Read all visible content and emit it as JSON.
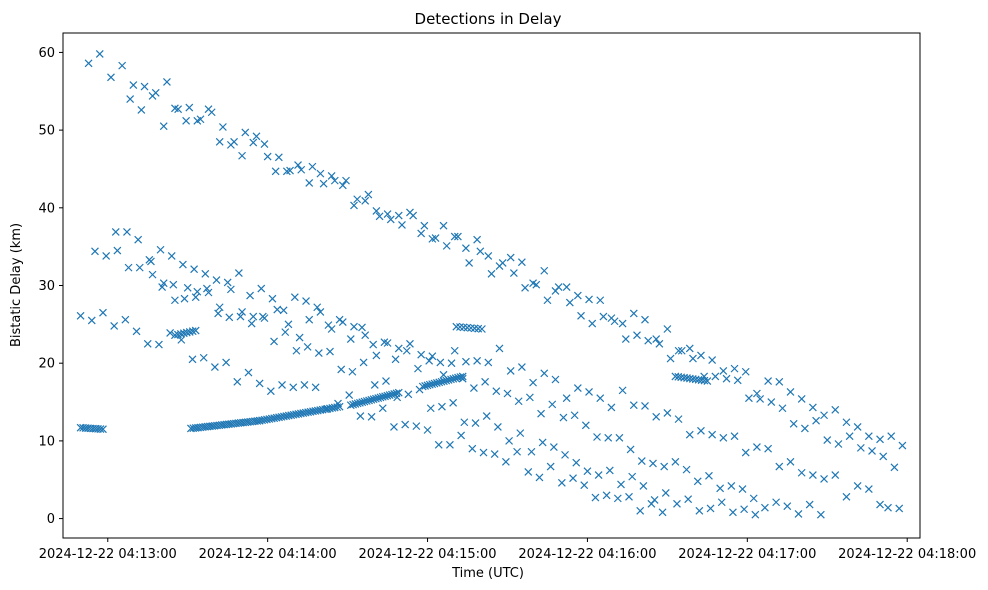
{
  "chart_data": {
    "type": "scatter",
    "title": "Detections in Delay",
    "xlabel": "Time (UTC)",
    "ylabel": "Bistatic Delay (km)",
    "marker": "x",
    "color": "#1f77b4",
    "grid": false,
    "x_units": "minutes after 2024-12-22 04:13:00",
    "xlim": [
      -0.28,
      5.08
    ],
    "ylim": [
      -2.5,
      62.5
    ],
    "xticks": [
      {
        "value": 0,
        "label": "2024-12-22 04:13:00"
      },
      {
        "value": 1,
        "label": "2024-12-22 04:14:00"
      },
      {
        "value": 2,
        "label": "2024-12-22 04:15:00"
      },
      {
        "value": 3,
        "label": "2024-12-22 04:16:00"
      },
      {
        "value": 4,
        "label": "2024-12-22 04:17:00"
      },
      {
        "value": 5,
        "label": "2024-12-22 04:18:00"
      }
    ],
    "yticks": [
      {
        "value": 0,
        "label": "0"
      },
      {
        "value": 10,
        "label": "10"
      },
      {
        "value": 20,
        "label": "20"
      },
      {
        "value": 30,
        "label": "30"
      },
      {
        "value": 40,
        "label": "40"
      },
      {
        "value": 50,
        "label": "50"
      },
      {
        "value": 60,
        "label": "60"
      }
    ],
    "tracks": [
      {
        "name": "track-1",
        "x_start": -0.17,
        "x_end": -0.03,
        "y_start": 11.7,
        "y_end": 11.5,
        "n": 10
      },
      {
        "name": "track-2",
        "x_start": 0.52,
        "x_end": 0.95,
        "y_start": 11.6,
        "y_end": 12.6,
        "n": 30
      },
      {
        "name": "track-3",
        "x_start": 0.95,
        "x_end": 1.45,
        "y_start": 12.6,
        "y_end": 14.4,
        "n": 34
      },
      {
        "name": "track-4",
        "x_start": 1.52,
        "x_end": 1.82,
        "y_start": 14.6,
        "y_end": 16.2,
        "n": 22
      },
      {
        "name": "track-5",
        "x_start": 1.97,
        "x_end": 2.22,
        "y_start": 17.0,
        "y_end": 18.3,
        "n": 18
      },
      {
        "name": "track-6",
        "x_start": 0.42,
        "x_end": 0.55,
        "y_start": 23.6,
        "y_end": 24.2,
        "n": 8
      },
      {
        "name": "track-7",
        "x_start": 2.18,
        "x_end": 2.34,
        "y_start": 24.7,
        "y_end": 24.4,
        "n": 8
      },
      {
        "name": "track-8",
        "x_start": 3.55,
        "x_end": 3.75,
        "y_start": 18.3,
        "y_end": 17.7,
        "n": 12
      }
    ],
    "points": [
      [
        0.28,
        31.4
      ],
      [
        0.35,
        30.3
      ],
      [
        0.42,
        28.1
      ],
      [
        0.5,
        29.7
      ],
      [
        0.56,
        29.2
      ],
      [
        0.63,
        29.1
      ],
      [
        0.7,
        27.2
      ],
      [
        0.77,
        29.5
      ],
      [
        0.84,
        26.6
      ],
      [
        0.91,
        26.0
      ],
      [
        0.98,
        25.8
      ],
      [
        1.06,
        26.9
      ],
      [
        1.13,
        25.0
      ],
      [
        1.2,
        23.3
      ],
      [
        1.26,
        25.6
      ],
      [
        1.33,
        26.6
      ],
      [
        1.4,
        24.4
      ],
      [
        1.47,
        25.3
      ],
      [
        1.54,
        24.7
      ],
      [
        1.61,
        23.6
      ],
      [
        1.68,
        21.0
      ],
      [
        1.75,
        22.6
      ],
      [
        1.82,
        21.9
      ],
      [
        1.89,
        22.5
      ],
      [
        1.96,
        21.1
      ],
      [
        2.03,
        20.9
      ],
      [
        2.1,
        18.5
      ],
      [
        2.17,
        21.6
      ],
      [
        2.24,
        20.2
      ],
      [
        2.31,
        20.3
      ],
      [
        2.38,
        20.1
      ],
      [
        2.45,
        21.9
      ],
      [
        2.52,
        19.0
      ],
      [
        2.59,
        19.5
      ],
      [
        2.66,
        17.5
      ],
      [
        2.73,
        18.7
      ],
      [
        2.8,
        17.9
      ],
      [
        2.87,
        15.5
      ],
      [
        2.94,
        16.8
      ],
      [
        3.01,
        16.3
      ],
      [
        3.08,
        15.5
      ],
      [
        3.15,
        14.3
      ],
      [
        3.22,
        16.5
      ],
      [
        3.29,
        14.6
      ],
      [
        3.36,
        14.5
      ],
      [
        3.43,
        13.1
      ],
      [
        3.5,
        13.6
      ],
      [
        3.57,
        12.8
      ],
      [
        3.64,
        10.8
      ],
      [
        3.71,
        11.3
      ],
      [
        3.78,
        10.8
      ],
      [
        3.85,
        10.4
      ],
      [
        3.92,
        10.6
      ],
      [
        3.99,
        8.5
      ],
      [
        4.06,
        9.2
      ],
      [
        4.13,
        9.0
      ],
      [
        4.2,
        6.7
      ],
      [
        4.27,
        7.3
      ],
      [
        4.34,
        5.9
      ],
      [
        4.41,
        5.6
      ],
      [
        4.48,
        5.1
      ],
      [
        4.55,
        5.6
      ],
      [
        4.62,
        2.8
      ],
      [
        4.69,
        4.2
      ],
      [
        4.76,
        3.8
      ],
      [
        4.83,
        1.8
      ],
      [
        4.88,
        1.4
      ],
      [
        4.95,
        1.3
      ],
      [
        -0.17,
        26.1
      ],
      [
        -0.1,
        25.5
      ],
      [
        -0.03,
        26.5
      ],
      [
        0.04,
        24.8
      ],
      [
        0.11,
        25.6
      ],
      [
        0.18,
        24.1
      ],
      [
        0.25,
        22.5
      ],
      [
        0.32,
        22.4
      ],
      [
        0.39,
        23.9
      ],
      [
        0.46,
        23.0
      ],
      [
        0.53,
        20.5
      ],
      [
        0.6,
        20.7
      ],
      [
        0.67,
        19.5
      ],
      [
        0.74,
        20.1
      ],
      [
        0.81,
        17.6
      ],
      [
        0.88,
        18.8
      ],
      [
        0.95,
        17.4
      ],
      [
        1.02,
        16.4
      ],
      [
        1.09,
        17.2
      ],
      [
        1.16,
        16.9
      ],
      [
        1.23,
        17.2
      ],
      [
        1.3,
        16.9
      ],
      [
        1.37,
        14.1
      ],
      [
        1.44,
        14.8
      ],
      [
        1.51,
        15.9
      ],
      [
        1.58,
        13.2
      ],
      [
        1.65,
        13.1
      ],
      [
        1.72,
        14.2
      ],
      [
        1.79,
        11.8
      ],
      [
        1.86,
        12.1
      ],
      [
        1.93,
        11.9
      ],
      [
        2.0,
        11.4
      ],
      [
        2.07,
        9.5
      ],
      [
        2.14,
        9.5
      ],
      [
        2.21,
        10.7
      ],
      [
        2.28,
        9.0
      ],
      [
        2.35,
        8.5
      ],
      [
        2.42,
        8.3
      ],
      [
        2.49,
        7.3
      ],
      [
        2.56,
        8.6
      ],
      [
        2.63,
        6.0
      ],
      [
        2.7,
        5.3
      ],
      [
        2.77,
        6.7
      ],
      [
        2.84,
        4.6
      ],
      [
        2.91,
        5.2
      ],
      [
        2.98,
        4.3
      ],
      [
        3.05,
        2.7
      ],
      [
        3.12,
        3.0
      ],
      [
        3.19,
        2.6
      ],
      [
        3.26,
        2.8
      ],
      [
        3.33,
        1.0
      ],
      [
        3.4,
        1.9
      ],
      [
        3.47,
        0.8
      ],
      [
        0.14,
        54.0
      ],
      [
        0.21,
        52.6
      ],
      [
        0.28,
        54.4
      ],
      [
        0.35,
        50.5
      ],
      [
        0.42,
        52.8
      ],
      [
        0.49,
        51.2
      ],
      [
        0.56,
        51.2
      ],
      [
        0.63,
        52.7
      ],
      [
        0.7,
        48.5
      ],
      [
        0.77,
        48.1
      ],
      [
        0.84,
        46.7
      ],
      [
        0.91,
        48.4
      ],
      [
        0.98,
        48.2
      ],
      [
        1.05,
        44.7
      ],
      [
        1.12,
        44.7
      ],
      [
        1.19,
        45.5
      ],
      [
        1.26,
        43.2
      ],
      [
        1.33,
        44.4
      ],
      [
        1.4,
        44.1
      ],
      [
        1.47,
        42.9
      ],
      [
        1.54,
        40.3
      ],
      [
        1.61,
        40.9
      ],
      [
        1.68,
        39.6
      ],
      [
        1.75,
        39.2
      ],
      [
        1.82,
        39.0
      ],
      [
        1.89,
        39.4
      ],
      [
        1.96,
        36.7
      ],
      [
        2.03,
        36.0
      ],
      [
        2.1,
        37.7
      ],
      [
        2.17,
        36.3
      ],
      [
        2.24,
        34.8
      ],
      [
        2.31,
        35.9
      ],
      [
        2.38,
        33.8
      ],
      [
        2.45,
        32.5
      ],
      [
        2.52,
        33.6
      ],
      [
        2.59,
        33.0
      ],
      [
        2.66,
        30.3
      ],
      [
        2.73,
        31.9
      ],
      [
        2.8,
        29.3
      ],
      [
        2.87,
        29.8
      ],
      [
        2.94,
        28.7
      ],
      [
        3.01,
        28.2
      ],
      [
        3.08,
        28.1
      ],
      [
        3.15,
        25.8
      ],
      [
        3.22,
        25.1
      ],
      [
        3.29,
        26.4
      ],
      [
        3.36,
        25.6
      ],
      [
        3.43,
        23.1
      ],
      [
        3.5,
        24.4
      ],
      [
        3.57,
        21.6
      ],
      [
        3.64,
        21.9
      ],
      [
        3.71,
        21.0
      ],
      [
        3.78,
        20.4
      ],
      [
        3.85,
        19.0
      ],
      [
        3.92,
        19.3
      ],
      [
        3.99,
        18.9
      ],
      [
        4.06,
        16.1
      ],
      [
        4.13,
        17.7
      ],
      [
        4.2,
        17.6
      ],
      [
        4.27,
        16.3
      ],
      [
        4.34,
        15.4
      ],
      [
        4.41,
        14.3
      ],
      [
        4.48,
        13.3
      ],
      [
        4.55,
        14.0
      ],
      [
        4.62,
        12.4
      ],
      [
        4.69,
        11.8
      ],
      [
        4.76,
        10.6
      ],
      [
        4.83,
        10.2
      ],
      [
        4.9,
        10.6
      ],
      [
        4.97,
        9.4
      ],
      [
        -0.12,
        58.6
      ],
      [
        -0.05,
        59.8
      ],
      [
        0.02,
        56.8
      ],
      [
        0.09,
        58.3
      ],
      [
        0.16,
        55.8
      ],
      [
        0.23,
        55.6
      ],
      [
        0.3,
        54.8
      ],
      [
        0.37,
        56.2
      ],
      [
        0.44,
        52.7
      ],
      [
        0.51,
        52.9
      ],
      [
        0.58,
        51.4
      ],
      [
        0.65,
        52.3
      ],
      [
        0.72,
        50.4
      ],
      [
        0.79,
        48.5
      ],
      [
        0.86,
        49.7
      ],
      [
        0.93,
        49.2
      ],
      [
        1.0,
        46.6
      ],
      [
        1.07,
        46.5
      ],
      [
        1.14,
        44.8
      ],
      [
        1.21,
        44.9
      ],
      [
        1.28,
        45.3
      ],
      [
        1.35,
        43.1
      ],
      [
        1.42,
        43.5
      ],
      [
        1.49,
        43.5
      ],
      [
        1.56,
        41.1
      ],
      [
        1.63,
        41.7
      ],
      [
        1.7,
        38.9
      ],
      [
        1.77,
        38.5
      ],
      [
        1.84,
        37.8
      ],
      [
        1.91,
        39.0
      ],
      [
        1.98,
        37.7
      ],
      [
        2.05,
        36.1
      ],
      [
        2.12,
        35.1
      ],
      [
        2.19,
        36.3
      ],
      [
        2.26,
        32.9
      ],
      [
        2.33,
        34.4
      ],
      [
        2.4,
        31.5
      ],
      [
        2.47,
        32.9
      ],
      [
        2.54,
        31.6
      ],
      [
        2.61,
        29.7
      ],
      [
        2.68,
        30.1
      ],
      [
        2.75,
        28.1
      ],
      [
        2.82,
        29.8
      ],
      [
        2.89,
        27.8
      ],
      [
        2.96,
        26.1
      ],
      [
        3.03,
        25.1
      ],
      [
        3.1,
        26.0
      ],
      [
        3.17,
        25.4
      ],
      [
        3.24,
        23.1
      ],
      [
        3.31,
        23.6
      ],
      [
        3.38,
        22.9
      ],
      [
        3.45,
        22.5
      ],
      [
        3.52,
        20.6
      ],
      [
        3.59,
        21.6
      ],
      [
        3.66,
        20.6
      ],
      [
        3.73,
        18.3
      ],
      [
        3.8,
        18.3
      ],
      [
        3.87,
        18.0
      ],
      [
        3.94,
        17.8
      ],
      [
        4.01,
        15.5
      ],
      [
        4.08,
        15.4
      ],
      [
        4.15,
        15.0
      ],
      [
        4.22,
        14.2
      ],
      [
        4.29,
        12.2
      ],
      [
        4.36,
        11.6
      ],
      [
        4.43,
        12.6
      ],
      [
        4.5,
        10.1
      ],
      [
        4.57,
        9.6
      ],
      [
        4.64,
        10.6
      ],
      [
        4.71,
        9.1
      ],
      [
        4.78,
        8.7
      ],
      [
        4.85,
        8.0
      ],
      [
        4.92,
        6.6
      ],
      [
        0.05,
        36.9
      ],
      [
        0.12,
        36.9
      ],
      [
        0.19,
        35.9
      ],
      [
        0.26,
        33.3
      ],
      [
        0.33,
        34.6
      ],
      [
        0.4,
        33.8
      ],
      [
        0.47,
        32.7
      ],
      [
        0.54,
        32.1
      ],
      [
        0.61,
        31.5
      ],
      [
        0.68,
        30.7
      ],
      [
        0.75,
        30.4
      ],
      [
        0.82,
        31.6
      ],
      [
        0.89,
        28.7
      ],
      [
        0.96,
        29.6
      ],
      [
        1.03,
        28.3
      ],
      [
        1.1,
        26.8
      ],
      [
        1.17,
        28.5
      ],
      [
        1.24,
        28.0
      ],
      [
        1.31,
        27.2
      ],
      [
        1.38,
        24.9
      ],
      [
        1.45,
        25.6
      ],
      [
        1.52,
        23.1
      ],
      [
        1.59,
        24.6
      ],
      [
        1.66,
        22.4
      ],
      [
        1.73,
        22.7
      ],
      [
        1.8,
        20.5
      ],
      [
        1.87,
        21.6
      ],
      [
        1.94,
        19.3
      ],
      [
        2.01,
        20.3
      ],
      [
        2.08,
        20.1
      ],
      [
        2.15,
        20.0
      ],
      [
        2.22,
        18.0
      ],
      [
        2.29,
        16.8
      ],
      [
        2.36,
        17.6
      ],
      [
        2.43,
        16.4
      ],
      [
        2.5,
        16.1
      ],
      [
        2.57,
        15.1
      ],
      [
        2.64,
        15.6
      ],
      [
        2.71,
        13.5
      ],
      [
        2.78,
        14.7
      ],
      [
        2.85,
        13.0
      ],
      [
        2.92,
        13.3
      ],
      [
        2.99,
        12.0
      ],
      [
        3.06,
        10.5
      ],
      [
        3.13,
        10.4
      ],
      [
        3.2,
        10.4
      ],
      [
        3.27,
        8.9
      ],
      [
        3.34,
        7.4
      ],
      [
        3.41,
        7.1
      ],
      [
        3.48,
        6.7
      ],
      [
        3.55,
        7.3
      ],
      [
        3.62,
        6.3
      ],
      [
        3.69,
        4.8
      ],
      [
        3.76,
        5.5
      ],
      [
        3.83,
        3.9
      ],
      [
        3.9,
        4.2
      ],
      [
        3.97,
        3.8
      ],
      [
        4.04,
        2.6
      ],
      [
        4.11,
        1.4
      ],
      [
        4.18,
        2.1
      ],
      [
        4.25,
        1.6
      ],
      [
        4.32,
        0.6
      ],
      [
        4.39,
        1.8
      ],
      [
        4.46,
        0.5
      ],
      [
        -0.08,
        34.4
      ],
      [
        -0.01,
        33.8
      ],
      [
        0.06,
        34.5
      ],
      [
        0.13,
        32.3
      ],
      [
        0.2,
        32.3
      ],
      [
        0.27,
        33.1
      ],
      [
        0.34,
        29.8
      ],
      [
        0.41,
        30.1
      ],
      [
        0.48,
        28.3
      ],
      [
        0.55,
        28.5
      ],
      [
        0.62,
        29.6
      ],
      [
        0.69,
        26.4
      ],
      [
        0.76,
        25.9
      ],
      [
        0.83,
        26.0
      ],
      [
        0.9,
        25.1
      ],
      [
        0.97,
        26.0
      ],
      [
        1.04,
        22.8
      ],
      [
        1.11,
        24.0
      ],
      [
        1.18,
        21.6
      ],
      [
        1.25,
        22.1
      ],
      [
        1.32,
        21.3
      ],
      [
        1.39,
        21.5
      ],
      [
        1.46,
        19.2
      ],
      [
        1.53,
        18.9
      ],
      [
        1.6,
        20.1
      ],
      [
        1.67,
        17.2
      ],
      [
        1.74,
        17.7
      ],
      [
        1.81,
        15.6
      ],
      [
        1.88,
        16.0
      ],
      [
        1.95,
        16.6
      ],
      [
        2.02,
        14.2
      ],
      [
        2.09,
        14.4
      ],
      [
        2.16,
        14.9
      ],
      [
        2.23,
        12.4
      ],
      [
        2.3,
        12.3
      ],
      [
        2.37,
        13.2
      ],
      [
        2.44,
        11.8
      ],
      [
        2.51,
        10.0
      ],
      [
        2.58,
        11.0
      ],
      [
        2.65,
        8.6
      ],
      [
        2.72,
        9.8
      ],
      [
        2.79,
        9.2
      ],
      [
        2.86,
        8.2
      ],
      [
        2.93,
        7.2
      ],
      [
        3.0,
        6.1
      ],
      [
        3.07,
        5.6
      ],
      [
        3.14,
        6.2
      ],
      [
        3.21,
        4.4
      ],
      [
        3.28,
        5.4
      ],
      [
        3.35,
        4.2
      ],
      [
        3.42,
        2.4
      ],
      [
        3.49,
        3.3
      ],
      [
        3.56,
        1.9
      ],
      [
        3.63,
        2.5
      ],
      [
        3.7,
        1.0
      ],
      [
        3.77,
        1.3
      ],
      [
        3.84,
        2.1
      ],
      [
        3.91,
        0.8
      ],
      [
        3.98,
        1.2
      ],
      [
        4.05,
        0.5
      ]
    ]
  }
}
